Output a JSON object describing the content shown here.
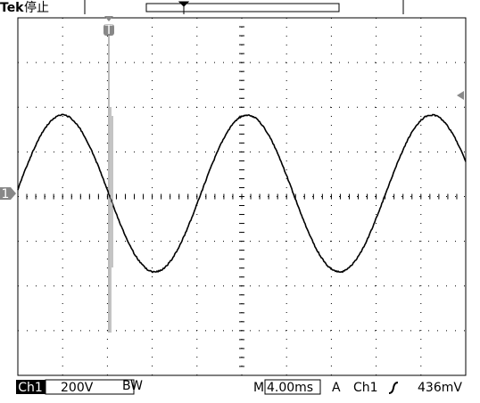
{
  "header": {
    "brand": "Tek",
    "status": "停止"
  },
  "screen": {
    "trigger_marker": "T",
    "channel_marker": "1"
  },
  "footer": {
    "channel": "Ch1",
    "volts_per_div": "200V",
    "bandwidth": "BW",
    "time_prefix": "M",
    "time_per_div": "4.00ms",
    "trigger_mode": "A",
    "trigger_source": "Ch1",
    "trigger_level": "436mV"
  }
}
